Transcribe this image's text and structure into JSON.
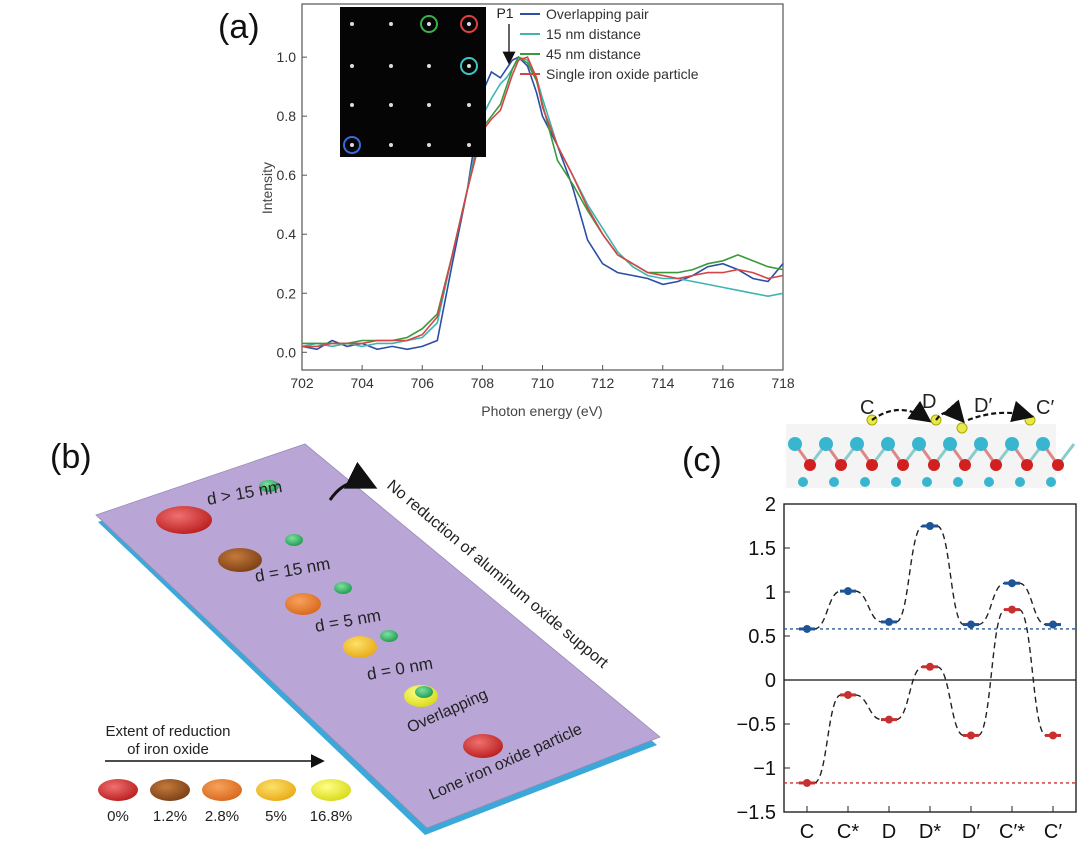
{
  "panels": {
    "a": "(a)",
    "b": "(b)",
    "c": "(c)"
  },
  "chart_data": [
    {
      "id": "a",
      "type": "line",
      "title": "",
      "xlabel": "Photon energy (eV)",
      "ylabel": "Intensity",
      "xlim": [
        702,
        718
      ],
      "ylim": [
        -0.06,
        1.18
      ],
      "xticks": [
        702,
        704,
        706,
        708,
        710,
        712,
        714,
        716,
        718
      ],
      "yticks": [
        0.0,
        0.2,
        0.4,
        0.6,
        0.8,
        1.0
      ],
      "ytick_labels": [
        "0.0",
        "0.2",
        "0.4",
        "0.6",
        "0.8",
        "1.0"
      ],
      "annotation": "P1",
      "annotation_x": 708.3,
      "legend": "top-right",
      "series": [
        {
          "name": "Overlapping pair",
          "color": "#2b4fa6",
          "x": [
            702,
            702.5,
            703,
            703.5,
            704,
            704.5,
            705,
            705.5,
            706,
            706.5,
            707,
            707.5,
            708,
            708.3,
            708.6,
            708.8,
            709,
            709.2,
            709.5,
            709.8,
            710,
            710.5,
            711,
            711.5,
            712,
            712.5,
            713,
            713.5,
            714,
            714.5,
            715,
            715.5,
            716,
            716.5,
            717,
            717.5,
            718
          ],
          "values": [
            0.02,
            0.01,
            0.04,
            0.02,
            0.03,
            0.01,
            0.02,
            0.01,
            0.02,
            0.04,
            0.3,
            0.55,
            0.88,
            0.95,
            0.93,
            0.96,
            0.99,
            1.0,
            0.97,
            0.88,
            0.8,
            0.7,
            0.56,
            0.38,
            0.3,
            0.27,
            0.26,
            0.25,
            0.23,
            0.24,
            0.26,
            0.29,
            0.3,
            0.28,
            0.25,
            0.24,
            0.3
          ]
        },
        {
          "name": "15 nm distance",
          "color": "#3fb5b3",
          "x": [
            702,
            702.5,
            703,
            703.5,
            704,
            704.5,
            705,
            705.5,
            706,
            706.5,
            707,
            707.5,
            708,
            708.3,
            708.6,
            708.8,
            709,
            709.2,
            709.5,
            709.8,
            710,
            710.5,
            711,
            711.5,
            712,
            712.5,
            713,
            713.5,
            714,
            714.5,
            715,
            715.5,
            716,
            716.5,
            717,
            717.5,
            718
          ],
          "values": [
            0.02,
            0.03,
            0.02,
            0.03,
            0.02,
            0.03,
            0.03,
            0.04,
            0.05,
            0.1,
            0.33,
            0.55,
            0.8,
            0.86,
            0.91,
            0.93,
            0.96,
            1.0,
            0.99,
            0.93,
            0.86,
            0.7,
            0.6,
            0.5,
            0.42,
            0.34,
            0.29,
            0.26,
            0.25,
            0.25,
            0.24,
            0.23,
            0.22,
            0.21,
            0.2,
            0.19,
            0.2
          ]
        },
        {
          "name": "45 nm distance",
          "color": "#3a9a3a",
          "x": [
            702,
            702.5,
            703,
            703.5,
            704,
            704.5,
            705,
            705.5,
            706,
            706.5,
            707,
            707.5,
            708,
            708.3,
            708.6,
            708.8,
            709,
            709.2,
            709.5,
            709.8,
            710,
            710.5,
            711,
            711.5,
            712,
            712.5,
            713,
            713.5,
            714,
            714.5,
            715,
            715.5,
            716,
            716.5,
            717,
            717.5,
            718
          ],
          "values": [
            0.03,
            0.03,
            0.03,
            0.03,
            0.04,
            0.04,
            0.04,
            0.05,
            0.08,
            0.13,
            0.33,
            0.55,
            0.76,
            0.8,
            0.84,
            0.9,
            0.96,
            1.0,
            0.98,
            0.92,
            0.84,
            0.65,
            0.57,
            0.48,
            0.4,
            0.33,
            0.3,
            0.27,
            0.27,
            0.27,
            0.28,
            0.3,
            0.31,
            0.33,
            0.31,
            0.29,
            0.28
          ]
        },
        {
          "name": "Single iron oxide particle",
          "color": "#d64545",
          "x": [
            702,
            702.5,
            703,
            703.5,
            704,
            704.5,
            705,
            705.5,
            706,
            706.5,
            707,
            707.5,
            708,
            708.3,
            708.6,
            708.8,
            709,
            709.2,
            709.5,
            709.8,
            710,
            710.5,
            711,
            711.5,
            712,
            712.5,
            713,
            713.5,
            714,
            714.5,
            715,
            715.5,
            716,
            716.5,
            717,
            717.5,
            718
          ],
          "values": [
            0.02,
            0.02,
            0.03,
            0.03,
            0.03,
            0.04,
            0.04,
            0.04,
            0.06,
            0.12,
            0.33,
            0.55,
            0.75,
            0.79,
            0.82,
            0.88,
            0.94,
            0.99,
            1.0,
            0.93,
            0.83,
            0.7,
            0.6,
            0.49,
            0.4,
            0.33,
            0.3,
            0.27,
            0.26,
            0.25,
            0.26,
            0.27,
            0.27,
            0.28,
            0.27,
            0.25,
            0.26
          ]
        }
      ]
    },
    {
      "id": "c",
      "type": "line",
      "title": "",
      "xlabel": "",
      "ylabel": "",
      "categories": [
        "C",
        "C*",
        "D",
        "D*",
        "D′",
        "C′*",
        "C′"
      ],
      "ylim": [
        -1.5,
        2.0
      ],
      "yticks": [
        -1.5,
        -1.0,
        -0.5,
        0,
        0.5,
        1.0,
        1.5,
        2.0
      ],
      "ytick_labels": [
        "−1.5",
        "−1",
        "−0.5",
        "0",
        "0.5",
        "1",
        "1.5",
        "2"
      ],
      "reference_lines": [
        {
          "value": 0.58,
          "color": "#2b5a9e"
        },
        {
          "value": -1.17,
          "color": "#c83030"
        }
      ],
      "series": [
        {
          "name": "blue",
          "color": "#1f5496",
          "values": [
            0.58,
            1.01,
            0.66,
            1.75,
            0.63,
            1.1,
            0.63
          ]
        },
        {
          "name": "red",
          "color": "#c83030",
          "values": [
            -1.17,
            -0.17,
            -0.45,
            0.15,
            -0.63,
            0.8,
            -0.63
          ]
        }
      ],
      "structure_labels": [
        "C",
        "D",
        "D′",
        "C′"
      ]
    }
  ],
  "panel_b": {
    "steps": [
      {
        "label": "d > 15 nm",
        "color": "#c8282a"
      },
      {
        "label": "d = 15 nm",
        "color": "#8b4a1e"
      },
      {
        "label": "d = 5 nm",
        "color": "#e6782a"
      },
      {
        "label": "d = 0 nm",
        "color": "#f2c028"
      },
      {
        "label": "Overlapping",
        "color": "#eded2a"
      },
      {
        "label": "Lone iron oxide particle",
        "color": "#c8282a"
      }
    ],
    "no_reduction_text": "No reduction of aluminum oxide support",
    "extent_title_line1": "Extent of reduction",
    "extent_title_line2": "of iron oxide",
    "extent_items": [
      {
        "label": "0%",
        "color": "#c8282a"
      },
      {
        "label": "1.2%",
        "color": "#8b4a1e"
      },
      {
        "label": "2.8%",
        "color": "#e6782a"
      },
      {
        "label": "5%",
        "color": "#f2c028"
      },
      {
        "label": "16.8%",
        "color": "#eded2a"
      }
    ],
    "support_color": "#b9a6d6",
    "edge_color": "#3aa8d8"
  }
}
